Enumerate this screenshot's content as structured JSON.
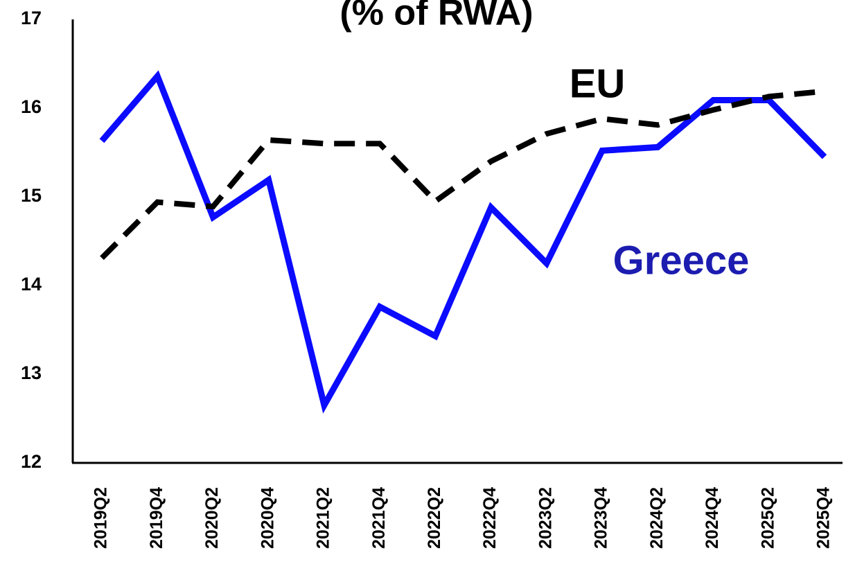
{
  "chart_data": {
    "type": "line",
    "title": "(% of RWA)",
    "categories": [
      "2019Q2",
      "2019Q4",
      "2020Q2",
      "2020Q4",
      "2021Q2",
      "2021Q4",
      "2022Q2",
      "2022Q4",
      "2023Q2",
      "2023Q4",
      "2024Q2",
      "2024Q4",
      "2025Q2",
      "2025Q4"
    ],
    "series": [
      {
        "name": "Greece",
        "color": "#0b0bff",
        "dashed": false,
        "values": [
          15.63,
          16.36,
          14.77,
          15.19,
          12.65,
          13.76,
          13.43,
          14.88,
          14.25,
          15.52,
          15.56,
          16.09,
          16.09,
          15.45
        ]
      },
      {
        "name": "EU",
        "color": "#000000",
        "dashed": true,
        "values": [
          14.31,
          14.94,
          14.89,
          15.64,
          15.6,
          15.6,
          14.95,
          15.4,
          15.71,
          15.88,
          15.81,
          15.98,
          16.13,
          16.19
        ]
      }
    ],
    "ylim": [
      12,
      17
    ],
    "yticks": [
      12,
      13,
      14,
      15,
      16,
      17
    ],
    "grid": false
  }
}
